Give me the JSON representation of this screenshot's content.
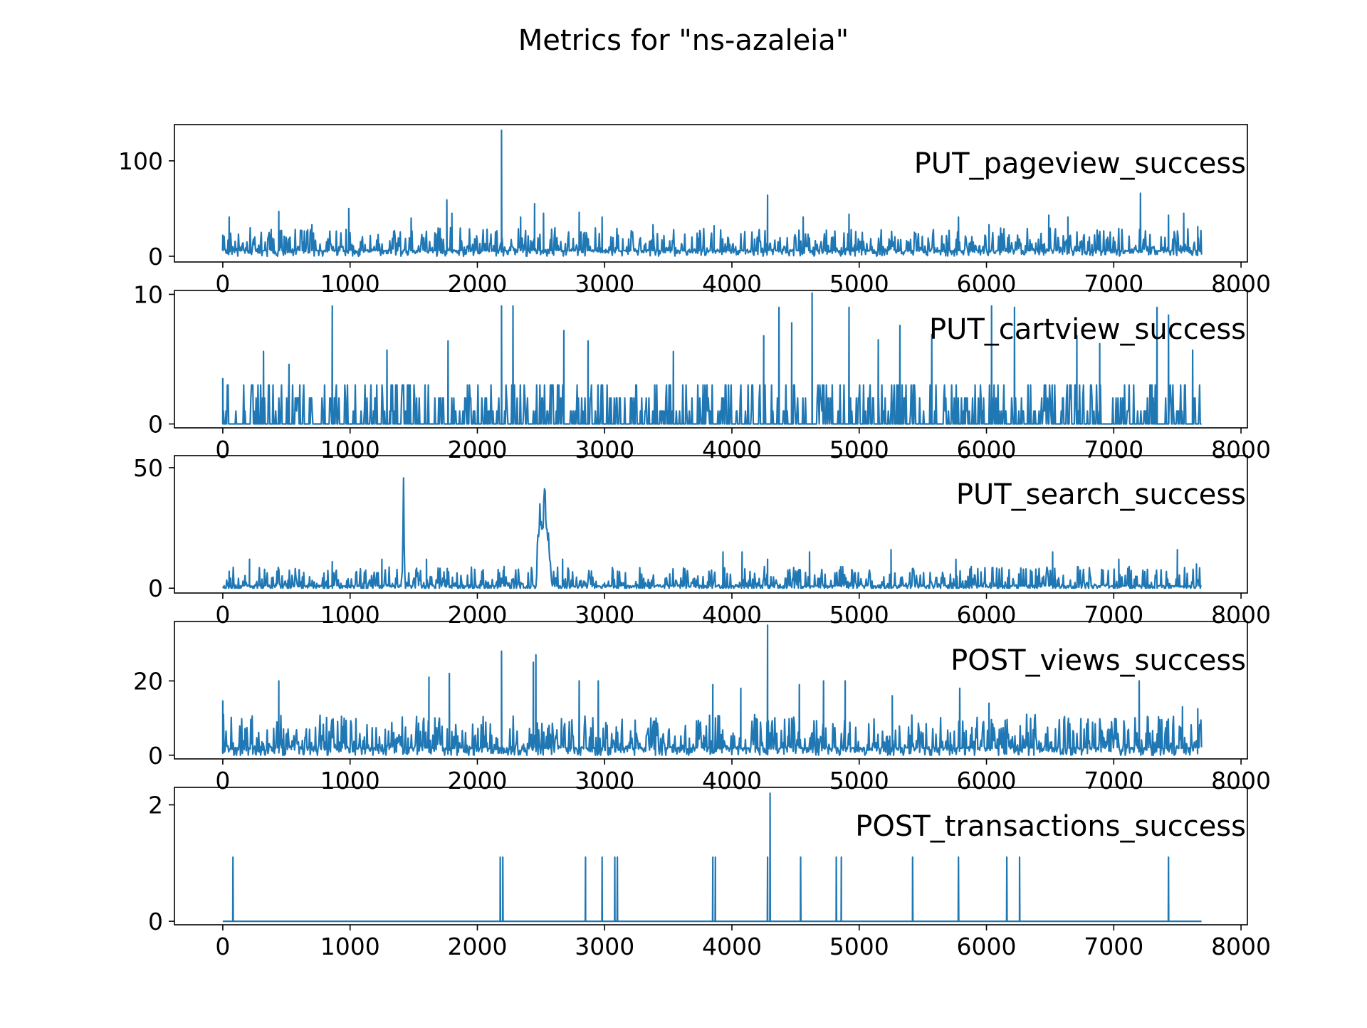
{
  "figure": {
    "title": "Metrics for \"ns-azaleia\""
  },
  "chart_data": [
    {
      "type": "line",
      "title": "PUT_pageview_success",
      "color": "#1f77b4",
      "xlim": [
        -380,
        8050
      ],
      "ylim": [
        -6,
        138
      ],
      "x_ticks": [
        0,
        1000,
        2000,
        3000,
        4000,
        5000,
        6000,
        7000,
        8000
      ],
      "y_ticks": [
        0,
        100
      ],
      "x_range": [
        0,
        7690
      ],
      "baseline": 6,
      "noise_max": 24,
      "peaks": [
        [
          0,
          22
        ],
        [
          50,
          41
        ],
        [
          380,
          28
        ],
        [
          440,
          47
        ],
        [
          700,
          33
        ],
        [
          990,
          50
        ],
        [
          1480,
          40
        ],
        [
          1760,
          59
        ],
        [
          1800,
          45
        ],
        [
          2190,
          132
        ],
        [
          2340,
          41
        ],
        [
          2450,
          55
        ],
        [
          2520,
          45
        ],
        [
          2800,
          46
        ],
        [
          2980,
          41
        ],
        [
          3380,
          33
        ],
        [
          3860,
          32
        ],
        [
          4280,
          64
        ],
        [
          4560,
          41
        ],
        [
          4920,
          44
        ],
        [
          5780,
          41
        ],
        [
          6020,
          33
        ],
        [
          6490,
          43
        ],
        [
          6640,
          41
        ],
        [
          7210,
          66
        ],
        [
          7430,
          43
        ],
        [
          7550,
          45
        ],
        [
          7660,
          31
        ]
      ]
    },
    {
      "type": "line",
      "title": "PUT_cartview_success",
      "color": "#1f77b4",
      "xlim": [
        -380,
        8050
      ],
      "ylim": [
        -0.3,
        10.3
      ],
      "x_ticks": [
        0,
        1000,
        2000,
        3000,
        4000,
        5000,
        6000,
        7000,
        8000
      ],
      "y_ticks": [
        0,
        10
      ],
      "x_range": [
        0,
        7690
      ],
      "baseline": 0,
      "spike_values": [
        1,
        2,
        3,
        4,
        5
      ],
      "peaks": [
        [
          0,
          3.5
        ],
        [
          320,
          5.6
        ],
        [
          520,
          4.6
        ],
        [
          860,
          9.1
        ],
        [
          1290,
          5.7
        ],
        [
          1770,
          6.4
        ],
        [
          2190,
          9.1
        ],
        [
          2280,
          9.1
        ],
        [
          2680,
          7.2
        ],
        [
          2870,
          6.4
        ],
        [
          3540,
          5.6
        ],
        [
          4250,
          6.8
        ],
        [
          4370,
          9
        ],
        [
          4470,
          7.8
        ],
        [
          4630,
          10.1
        ],
        [
          4920,
          9
        ],
        [
          5150,
          6.5
        ],
        [
          5320,
          7.6
        ],
        [
          5570,
          6.9
        ],
        [
          6040,
          9.1
        ],
        [
          6220,
          9
        ],
        [
          6710,
          6.8
        ],
        [
          6890,
          6.2
        ],
        [
          7340,
          9
        ],
        [
          7430,
          8.4
        ],
        [
          7620,
          5.7
        ]
      ]
    },
    {
      "type": "line",
      "title": "PUT_search_success",
      "color": "#1f77b4",
      "xlim": [
        -380,
        8050
      ],
      "ylim": [
        -2,
        55
      ],
      "x_ticks": [
        0,
        1000,
        2000,
        3000,
        4000,
        5000,
        6000,
        7000,
        8000
      ],
      "y_ticks": [
        0,
        50
      ],
      "x_range": [
        0,
        7690
      ],
      "baseline": 1,
      "noise_max": 8,
      "bumps": [
        [
          1420,
          12,
          50
        ],
        [
          2490,
          30,
          50
        ],
        [
          2510,
          44,
          30
        ],
        [
          2530,
          46,
          54
        ],
        [
          2560,
          28,
          30
        ]
      ],
      "peaks": [
        [
          50,
          7
        ],
        [
          210,
          12
        ],
        [
          860,
          11
        ],
        [
          1250,
          12
        ],
        [
          1600,
          12
        ],
        [
          2210,
          9
        ],
        [
          2670,
          12
        ],
        [
          3930,
          15
        ],
        [
          4080,
          15
        ],
        [
          4280,
          12
        ],
        [
          4610,
          15
        ],
        [
          5250,
          16
        ],
        [
          5760,
          12
        ],
        [
          6520,
          15
        ],
        [
          7040,
          12
        ],
        [
          7500,
          16
        ],
        [
          7650,
          10
        ]
      ]
    },
    {
      "type": "line",
      "title": "POST_views_success",
      "color": "#1f77b4",
      "xlim": [
        -380,
        8050
      ],
      "ylim": [
        -1,
        36
      ],
      "x_ticks": [
        0,
        1000,
        2000,
        3000,
        4000,
        5000,
        6000,
        7000,
        8000
      ],
      "y_ticks": [
        0,
        20
      ],
      "x_range": [
        0,
        7690
      ],
      "baseline": 2,
      "noise_max": 9,
      "peaks": [
        [
          0,
          14.6
        ],
        [
          440,
          20
        ],
        [
          1620,
          21
        ],
        [
          1780,
          22
        ],
        [
          2190,
          28
        ],
        [
          2440,
          25
        ],
        [
          2460,
          27
        ],
        [
          2800,
          20
        ],
        [
          2950,
          20
        ],
        [
          3850,
          19
        ],
        [
          4070,
          18
        ],
        [
          4280,
          35
        ],
        [
          4530,
          19
        ],
        [
          4720,
          20
        ],
        [
          4890,
          20
        ],
        [
          5260,
          16
        ],
        [
          5790,
          18
        ],
        [
          6020,
          14
        ],
        [
          7200,
          20
        ],
        [
          7540,
          13
        ],
        [
          7660,
          12.5
        ]
      ]
    },
    {
      "type": "line",
      "title": "POST_transactions_success",
      "color": "#1f77b4",
      "xlim": [
        -380,
        8050
      ],
      "ylim": [
        -0.06,
        2.3
      ],
      "x_ticks": [
        0,
        1000,
        2000,
        3000,
        4000,
        5000,
        6000,
        7000,
        8000
      ],
      "y_ticks": [
        0,
        2
      ],
      "x_range": [
        0,
        7690
      ],
      "baseline": 0,
      "peaks": [
        [
          80,
          1.1
        ],
        [
          2180,
          1.1
        ],
        [
          2200,
          1.1
        ],
        [
          2850,
          1.1
        ],
        [
          2980,
          1.1
        ],
        [
          3080,
          1.1
        ],
        [
          3100,
          1.1
        ],
        [
          3850,
          1.1
        ],
        [
          3870,
          1.1
        ],
        [
          4280,
          1.1
        ],
        [
          4300,
          2.2
        ],
        [
          4540,
          1.1
        ],
        [
          4820,
          1.1
        ],
        [
          4860,
          1.1
        ],
        [
          5420,
          1.1
        ],
        [
          5780,
          1.1
        ],
        [
          6160,
          1.1
        ],
        [
          6260,
          1.1
        ],
        [
          7430,
          1.1
        ]
      ]
    }
  ]
}
